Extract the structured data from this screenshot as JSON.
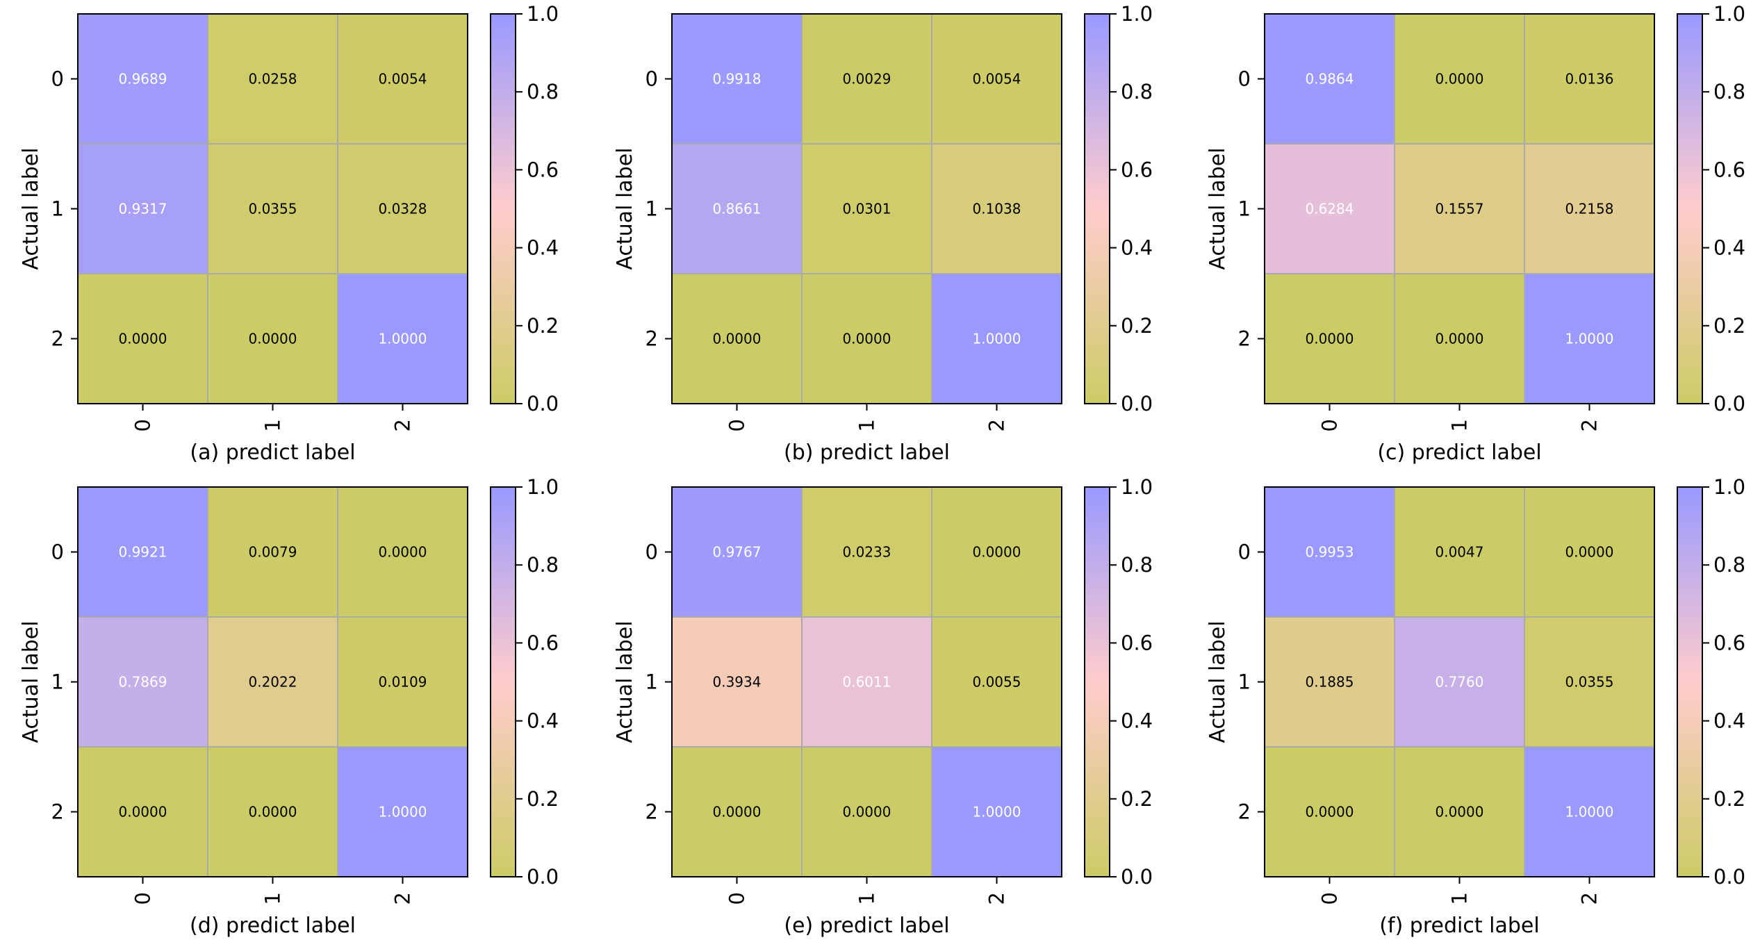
{
  "chart_data": [
    {
      "type": "heatmap",
      "panel": "a",
      "xlabel": "(a) predict label",
      "ylabel": "Actual label",
      "x_ticks": [
        "0",
        "1",
        "2"
      ],
      "y_ticks": [
        "0",
        "1",
        "2"
      ],
      "values": [
        [
          0.9689,
          0.0258,
          0.0054
        ],
        [
          0.9317,
          0.0355,
          0.0328
        ],
        [
          0.0,
          0.0,
          1.0
        ]
      ],
      "cell_labels": [
        [
          "0.9689",
          "0.0258",
          "0.0054"
        ],
        [
          "0.9317",
          "0.0355",
          "0.0328"
        ],
        [
          "0.0000",
          "0.0000",
          "1.0000"
        ]
      ],
      "colorbar": {
        "range": [
          0,
          1
        ],
        "ticks": [
          "0.0",
          "0.2",
          "0.4",
          "0.6",
          "0.8",
          "1.0"
        ]
      }
    },
    {
      "type": "heatmap",
      "panel": "b",
      "xlabel": "(b) predict label",
      "ylabel": "Actual label",
      "x_ticks": [
        "0",
        "1",
        "2"
      ],
      "y_ticks": [
        "0",
        "1",
        "2"
      ],
      "values": [
        [
          0.9918,
          0.0029,
          0.0054
        ],
        [
          0.8661,
          0.0301,
          0.1038
        ],
        [
          0.0,
          0.0,
          1.0
        ]
      ],
      "cell_labels": [
        [
          "0.9918",
          "0.0029",
          "0.0054"
        ],
        [
          "0.8661",
          "0.0301",
          "0.1038"
        ],
        [
          "0.0000",
          "0.0000",
          "1.0000"
        ]
      ],
      "colorbar": {
        "range": [
          0,
          1
        ],
        "ticks": [
          "0.0",
          "0.2",
          "0.4",
          "0.6",
          "0.8",
          "1.0"
        ]
      }
    },
    {
      "type": "heatmap",
      "panel": "c",
      "xlabel": "(c) predict label",
      "ylabel": "Actual label",
      "x_ticks": [
        "0",
        "1",
        "2"
      ],
      "y_ticks": [
        "0",
        "1",
        "2"
      ],
      "values": [
        [
          0.9864,
          0.0,
          0.0136
        ],
        [
          0.6284,
          0.1557,
          0.2158
        ],
        [
          0.0,
          0.0,
          1.0
        ]
      ],
      "cell_labels": [
        [
          "0.9864",
          "0.0000",
          "0.0136"
        ],
        [
          "0.6284",
          "0.1557",
          "0.2158"
        ],
        [
          "0.0000",
          "0.0000",
          "1.0000"
        ]
      ],
      "colorbar": {
        "range": [
          0,
          1
        ],
        "ticks": [
          "0.0",
          "0.2",
          "0.4",
          "0.6",
          "0.8",
          "1.0"
        ]
      }
    },
    {
      "type": "heatmap",
      "panel": "d",
      "xlabel": "(d) predict label",
      "ylabel": "Actual label",
      "x_ticks": [
        "0",
        "1",
        "2"
      ],
      "y_ticks": [
        "0",
        "1",
        "2"
      ],
      "values": [
        [
          0.9921,
          0.0079,
          0.0
        ],
        [
          0.7869,
          0.2022,
          0.0109
        ],
        [
          0.0,
          0.0,
          1.0
        ]
      ],
      "cell_labels": [
        [
          "0.9921",
          "0.0079",
          "0.0000"
        ],
        [
          "0.7869",
          "0.2022",
          "0.0109"
        ],
        [
          "0.0000",
          "0.0000",
          "1.0000"
        ]
      ],
      "colorbar": {
        "range": [
          0,
          1
        ],
        "ticks": [
          "0.0",
          "0.2",
          "0.4",
          "0.6",
          "0.8",
          "1.0"
        ]
      }
    },
    {
      "type": "heatmap",
      "panel": "e",
      "xlabel": "(e) predict label",
      "ylabel": "Actual label",
      "x_ticks": [
        "0",
        "1",
        "2"
      ],
      "y_ticks": [
        "0",
        "1",
        "2"
      ],
      "values": [
        [
          0.9767,
          0.0233,
          0.0
        ],
        [
          0.3934,
          0.6011,
          0.0055
        ],
        [
          0.0,
          0.0,
          1.0
        ]
      ],
      "cell_labels": [
        [
          "0.9767",
          "0.0233",
          "0.0000"
        ],
        [
          "0.3934",
          "0.6011",
          "0.0055"
        ],
        [
          "0.0000",
          "0.0000",
          "1.0000"
        ]
      ],
      "colorbar": {
        "range": [
          0,
          1
        ],
        "ticks": [
          "0.0",
          "0.2",
          "0.4",
          "0.6",
          "0.8",
          "1.0"
        ]
      }
    },
    {
      "type": "heatmap",
      "panel": "f",
      "xlabel": "(f) predict label",
      "ylabel": "Actual label",
      "x_ticks": [
        "0",
        "1",
        "2"
      ],
      "y_ticks": [
        "0",
        "1",
        "2"
      ],
      "values": [
        [
          0.9953,
          0.0047,
          0.0
        ],
        [
          0.1885,
          0.776,
          0.0355
        ],
        [
          0.0,
          0.0,
          1.0
        ]
      ],
      "cell_labels": [
        [
          "0.9953",
          "0.0047",
          "0.0000"
        ],
        [
          "0.1885",
          "0.7760",
          "0.0355"
        ],
        [
          "0.0000",
          "0.0000",
          "1.0000"
        ]
      ],
      "colorbar": {
        "range": [
          0,
          1
        ],
        "ticks": [
          "0.0",
          "0.2",
          "0.4",
          "0.6",
          "0.8",
          "1.0"
        ]
      }
    }
  ],
  "colormap": {
    "stops": [
      "#cccc66",
      "#ffcccc",
      "#9999ff"
    ],
    "grid_color": "#aaaaaa",
    "light_text_color": "#ffffff",
    "dark_text_color": "#000000"
  }
}
